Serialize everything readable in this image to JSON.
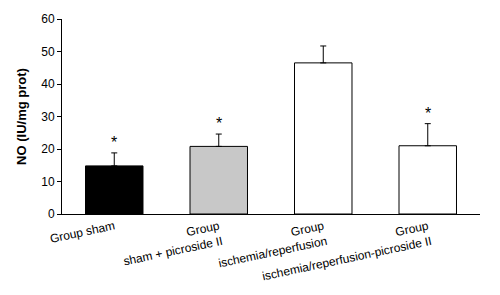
{
  "chart_data": {
    "type": "bar",
    "y_label": "NO (IU/mg prot)",
    "categories": [
      "Group sham",
      "Group sham + picroside II",
      "Group ischemia/reperfusion",
      "Group ischemia/reperfusion-picroside II"
    ],
    "values": [
      14.8,
      20.8,
      46.5,
      21.0
    ],
    "errors": [
      4.0,
      3.8,
      5.2,
      6.8
    ],
    "significance": [
      "*",
      "*",
      null,
      "*"
    ],
    "colors": [
      "#000000",
      "#c8c8c8",
      "#ffffff",
      "#ffffff"
    ],
    "ylim": [
      0,
      60
    ],
    "yticks": [
      0,
      10,
      20,
      30,
      40,
      50,
      60
    ],
    "grid": false
  }
}
